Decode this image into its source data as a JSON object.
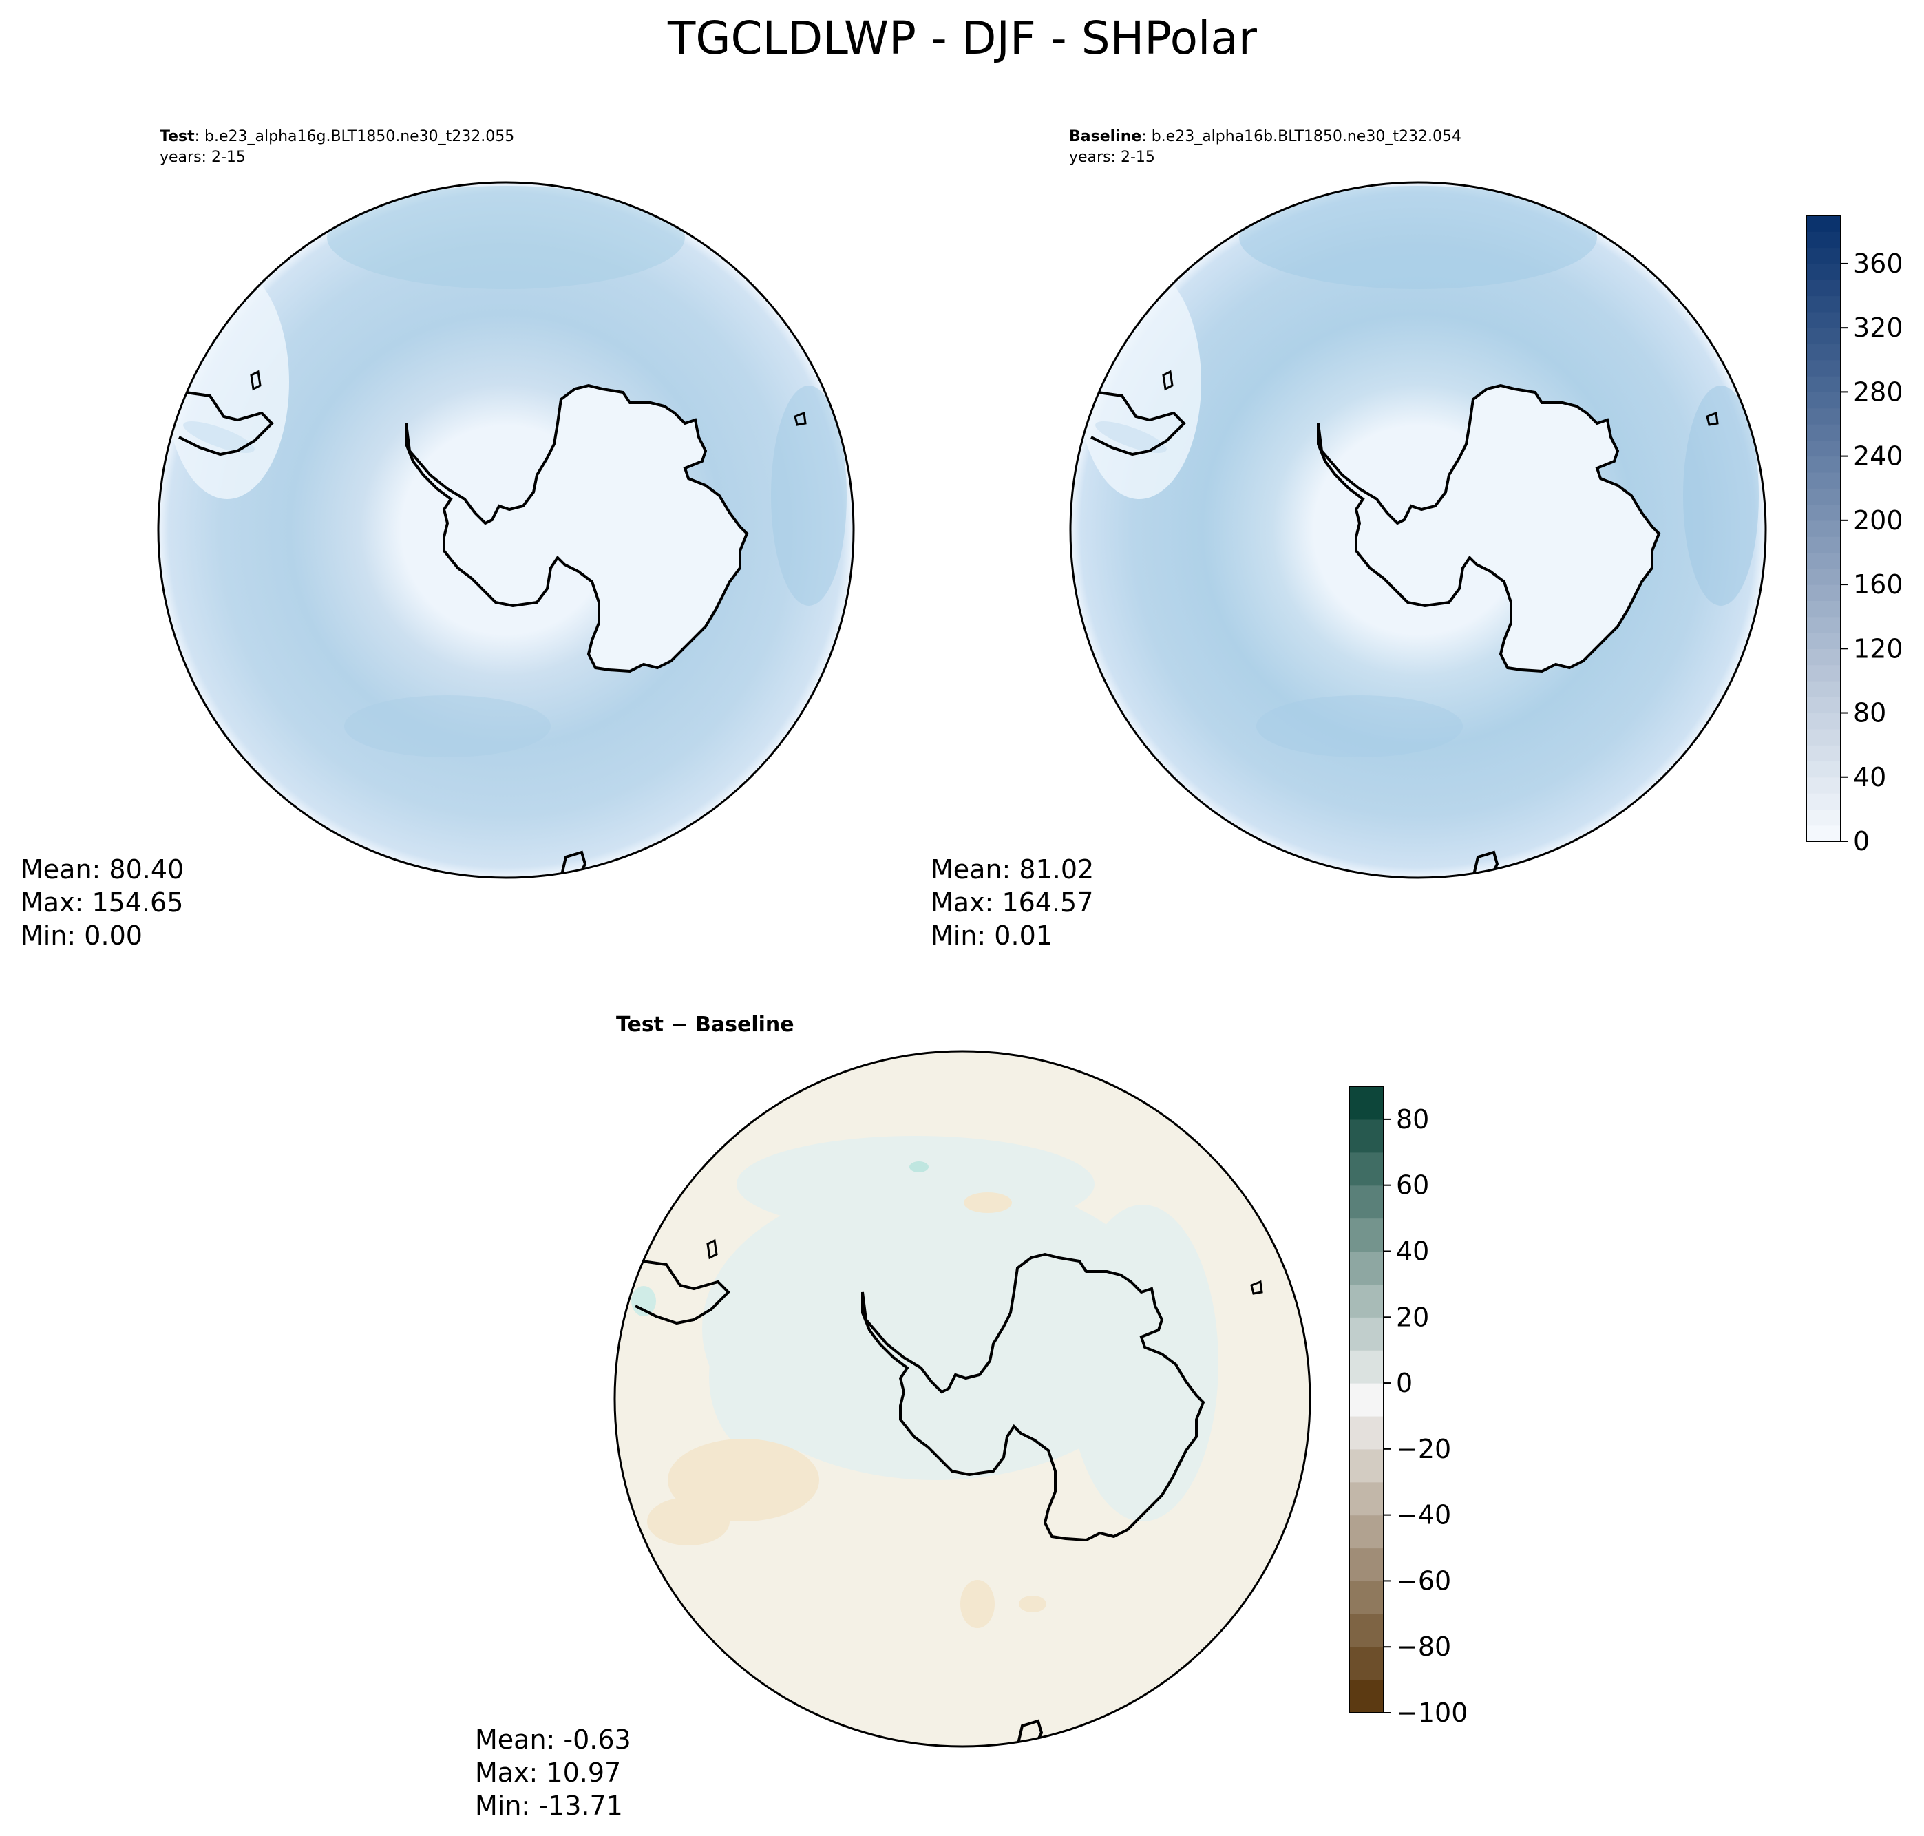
{
  "chart_data": {
    "type": "heatmap",
    "projection": "south polar stereographic",
    "title": "TGCLDLWP - DJF - SHPolar",
    "panels": [
      {
        "id": "test",
        "label": "Test",
        "case": ": b.e23_alpha16g.BLT1850.ne30_t232.055",
        "years": "years: 2-15",
        "stats": {
          "mean": "Mean: 80.40",
          "max": "Max: 154.65",
          "min": "Min:  0.00"
        },
        "colormap": "Blues",
        "colorbar_range": [
          0,
          390
        ],
        "field_description_values": {
          "ocean_typical": 110,
          "high_band": 150,
          "antarctica": 0
        }
      },
      {
        "id": "baseline",
        "label": "Baseline",
        "case": ": b.e23_alpha16b.BLT1850.ne30_t232.054",
        "years": "years: 2-15",
        "stats": {
          "mean": "Mean: 81.02",
          "max": "Max: 164.57",
          "min": "Min:  0.01"
        },
        "colormap": "Blues",
        "colorbar_range": [
          0,
          390
        ],
        "field_description_values": {
          "ocean_typical": 112,
          "high_band": 155,
          "antarctica": 0
        }
      },
      {
        "id": "diff",
        "label": "Test − Baseline",
        "stats": {
          "mean": "Mean: -0.63",
          "max": "Max: 10.97",
          "min": "Min: -13.71"
        },
        "colormap": "BrBG",
        "colorbar_range": [
          -100,
          90
        ],
        "field_description_values": {
          "ocean_typical": -3,
          "positive_patches": 5,
          "negative_patches": -10
        }
      }
    ],
    "colorbars": [
      {
        "id": "abs",
        "ticks": [
          0,
          40,
          80,
          120,
          160,
          200,
          240,
          280,
          320,
          360
        ],
        "tick_labels": [
          "0",
          "40",
          "80",
          "120",
          "160",
          "200",
          "240",
          "280",
          "320",
          "360"
        ],
        "min": 0,
        "max": 390,
        "levels": 39,
        "colors": [
          "#f7fbff",
          "#08306b"
        ]
      },
      {
        "id": "diff",
        "ticks": [
          -100,
          -80,
          -60,
          -40,
          -20,
          0,
          20,
          40,
          60,
          80
        ],
        "tick_labels": [
          "−100",
          "−80",
          "−60",
          "−40",
          "−20",
          "0",
          "20",
          "40",
          "60",
          "80"
        ],
        "min": -100,
        "max": 90,
        "levels": 19,
        "colors": [
          "#543005",
          "#f5f5f5",
          "#003c30"
        ]
      }
    ]
  }
}
